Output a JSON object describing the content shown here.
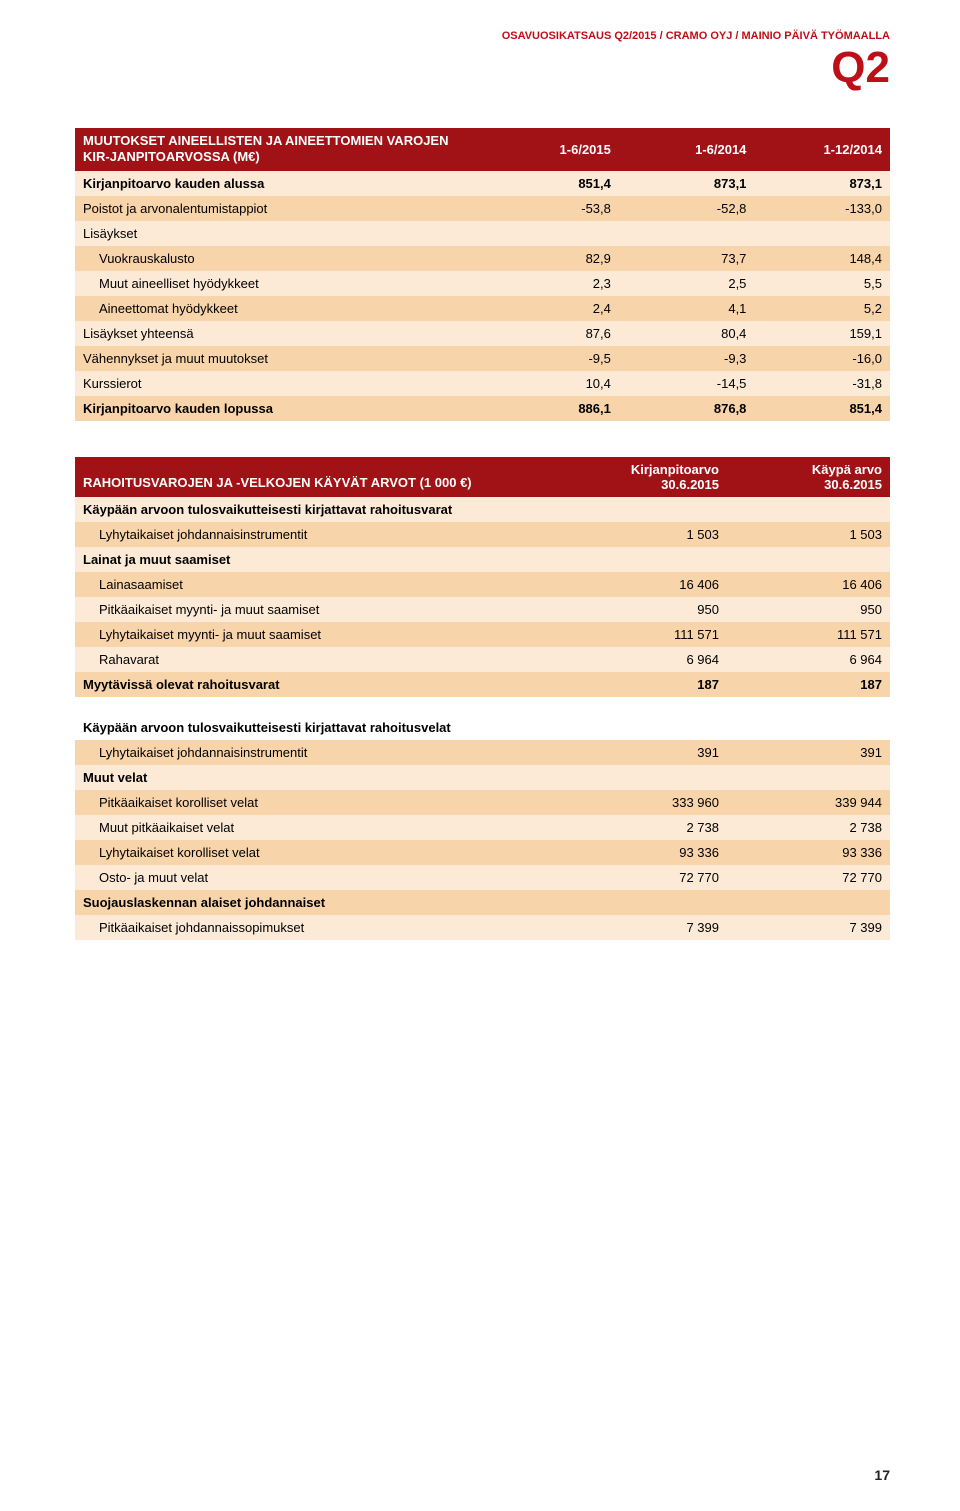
{
  "header": {
    "line": "OSAVUOSIKATSAUS Q2/2015 / CRAMO OYJ / MAINIO PÄIVÄ TYÖMAALLA",
    "q2": "Q2"
  },
  "colors": {
    "brand": "#be0f19",
    "header_bg": "#a11217",
    "row_light": "#fce9d6",
    "row_dark": "#f8d4ab"
  },
  "table1": {
    "title": "MUUTOKSET AINEELLISTEN JA AINEETTOMIEN VAROJEN KIR-JANPITOARVOSSA (M€)",
    "cols": [
      "1-6/2015",
      "1-6/2014",
      "1-12/2014"
    ],
    "rows": [
      {
        "label": "Kirjanpitoarvo kauden alussa",
        "v": [
          "851,4",
          "873,1",
          "873,1"
        ],
        "bold": true,
        "shade": "odd"
      },
      {
        "label": "Poistot ja arvonalentumistappiot",
        "v": [
          "-53,8",
          "-52,8",
          "-133,0"
        ],
        "shade": "even"
      },
      {
        "label": "Lisäykset",
        "v": [
          "",
          "",
          ""
        ],
        "shade": "odd"
      },
      {
        "label": "Vuokrauskalusto",
        "v": [
          "82,9",
          "73,7",
          "148,4"
        ],
        "indent": true,
        "shade": "even"
      },
      {
        "label": "Muut aineelliset hyödykkeet",
        "v": [
          "2,3",
          "2,5",
          "5,5"
        ],
        "indent": true,
        "shade": "odd"
      },
      {
        "label": "Aineettomat hyödykkeet",
        "v": [
          "2,4",
          "4,1",
          "5,2"
        ],
        "indent": true,
        "shade": "even"
      },
      {
        "label": "Lisäykset yhteensä",
        "v": [
          "87,6",
          "80,4",
          "159,1"
        ],
        "shade": "odd"
      },
      {
        "label": "Vähennykset ja muut muutokset",
        "v": [
          "-9,5",
          "-9,3",
          "-16,0"
        ],
        "shade": "even"
      },
      {
        "label": "Kurssierot",
        "v": [
          "10,4",
          "-14,5",
          "-31,8"
        ],
        "shade": "odd"
      },
      {
        "label": "Kirjanpitoarvo kauden lopussa",
        "v": [
          "886,1",
          "876,8",
          "851,4"
        ],
        "bold": true,
        "shade": "even"
      }
    ]
  },
  "table2": {
    "title": "RAHOITUSVAROJEN JA -VELKOJEN KÄYVÄT ARVOT (1 000 €)",
    "cols": [
      {
        "l1": "Kirjanpitoarvo",
        "l2": "30.6.2015"
      },
      {
        "l1": "Käypä arvo",
        "l2": "30.6.2015"
      }
    ],
    "rows": [
      {
        "label": "Käypään arvoon tulosvaikutteisesti kirjattavat rahoitusvarat",
        "v": [
          "",
          ""
        ],
        "bold": true,
        "shade": "odd"
      },
      {
        "label": "Lyhytaikaiset johdannaisinstrumentit",
        "v": [
          "1 503",
          "1 503"
        ],
        "indent": true,
        "shade": "even"
      },
      {
        "label": "Lainat ja muut saamiset",
        "v": [
          "",
          ""
        ],
        "bold": true,
        "shade": "odd"
      },
      {
        "label": "Lainasaamiset",
        "v": [
          "16 406",
          "16 406"
        ],
        "indent": true,
        "shade": "even"
      },
      {
        "label": "Pitkäaikaiset myynti- ja muut saamiset",
        "v": [
          "950",
          "950"
        ],
        "indent": true,
        "shade": "odd"
      },
      {
        "label": "Lyhytaikaiset myynti- ja muut saamiset",
        "v": [
          "111 571",
          "111 571"
        ],
        "indent": true,
        "shade": "even"
      },
      {
        "label": "Rahavarat",
        "v": [
          "6 964",
          "6 964"
        ],
        "indent": true,
        "shade": "odd"
      },
      {
        "label": "Myytävissä olevat rahoitusvarat",
        "v": [
          "187",
          "187"
        ],
        "bold": true,
        "shade": "even"
      },
      {
        "gap": true
      },
      {
        "label": "Käypään arvoon tulosvaikutteisesti kirjattavat rahoitusvelat",
        "v": [
          "",
          ""
        ],
        "bold": true,
        "white": true
      },
      {
        "label": "Lyhytaikaiset johdannaisinstrumentit",
        "v": [
          "391",
          "391"
        ],
        "indent": true,
        "shade": "even"
      },
      {
        "label": "Muut velat",
        "v": [
          "",
          ""
        ],
        "bold": true,
        "shade": "odd"
      },
      {
        "label": "Pitkäaikaiset korolliset velat",
        "v": [
          "333 960",
          "339 944"
        ],
        "indent": true,
        "shade": "even"
      },
      {
        "label": "Muut pitkäaikaiset velat",
        "v": [
          "2 738",
          "2 738"
        ],
        "indent": true,
        "shade": "odd"
      },
      {
        "label": "Lyhytaikaiset korolliset velat",
        "v": [
          "93 336",
          "93 336"
        ],
        "indent": true,
        "shade": "even"
      },
      {
        "label": "Osto- ja muut velat",
        "v": [
          "72 770",
          "72 770"
        ],
        "indent": true,
        "shade": "odd"
      },
      {
        "label": "Suojauslaskennan alaiset johdannaiset",
        "v": [
          "",
          ""
        ],
        "bold": true,
        "shade": "even"
      },
      {
        "label": "Pitkäaikaiset johdannaissopimukset",
        "v": [
          "7 399",
          "7 399"
        ],
        "indent": true,
        "shade": "odd"
      }
    ]
  },
  "page_number": "17"
}
